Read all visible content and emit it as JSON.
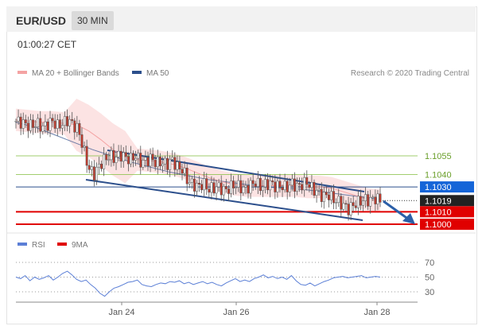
{
  "header": {
    "pair": "EUR/USD",
    "timeframe": "30 MIN"
  },
  "timestamp": "01:00:27 CET",
  "legend": {
    "ma20": {
      "label": "MA 20 + Bollinger Bands",
      "color": "#f4a3a3"
    },
    "ma50": {
      "label": "MA 50",
      "color": "#2c4f8c"
    }
  },
  "credit": "Research © 2020 Trading Central",
  "rsi_legend": {
    "rsi": {
      "label": "RSI",
      "color": "#5b7fd6"
    },
    "ma9": {
      "label": "9MA",
      "color": "#e00000"
    }
  },
  "chart_data": [
    {
      "type": "candlestick",
      "x_ticks": [
        "Jan 24",
        "Jan 26",
        "Jan 28"
      ],
      "ylim": [
        1.0995,
        1.1105
      ],
      "last_price": 1.1019,
      "levels": [
        {
          "label": "1.1055",
          "value": 1.1055,
          "kind": "resistance"
        },
        {
          "label": "1.1040",
          "value": 1.104,
          "kind": "resistance"
        },
        {
          "label": "1.1030",
          "value": 1.103,
          "kind": "pivot"
        },
        {
          "label": "1.1019",
          "value": 1.1019,
          "kind": "last"
        },
        {
          "label": "1.1010",
          "value": 1.101,
          "kind": "support"
        },
        {
          "label": "1.1000",
          "value": 1.1,
          "kind": "support"
        }
      ],
      "close_path": [
        1.1083,
        1.1082,
        1.108,
        1.1079,
        1.1081,
        1.1078,
        1.108,
        1.1083,
        1.1079,
        1.1081,
        1.1084,
        1.108,
        1.1076,
        1.106,
        1.1045,
        1.104,
        1.1047,
        1.1052,
        1.1055,
        1.1053,
        1.1056,
        1.1054,
        1.1052,
        1.1055,
        1.105,
        1.1051,
        1.1053,
        1.1049,
        1.105,
        1.1048,
        1.1052,
        1.1046,
        1.1044,
        1.1035,
        1.1032,
        1.103,
        1.1033,
        1.1028,
        1.1029,
        1.103,
        1.1027,
        1.1029,
        1.1032,
        1.103,
        1.1028,
        1.1031,
        1.1034,
        1.103,
        1.1032,
        1.1033,
        1.103,
        1.1031,
        1.1029,
        1.1033,
        1.103,
        1.1032,
        1.1034,
        1.1028,
        1.1026,
        1.1022,
        1.1024,
        1.102,
        1.1018,
        1.1015,
        1.1012,
        1.1016,
        1.1018,
        1.102,
        1.1019,
        1.1021,
        1.1019
      ],
      "ma20_path": [
        1.1084,
        1.1083,
        1.1082,
        1.1082,
        1.1081,
        1.108,
        1.1075,
        1.1068,
        1.106,
        1.1054,
        1.1052,
        1.1051,
        1.105,
        1.1048,
        1.1045,
        1.1041,
        1.1037,
        1.1034,
        1.1032,
        1.1031,
        1.1031,
        1.1031,
        1.1031,
        1.1031,
        1.103,
        1.103,
        1.1029,
        1.1026,
        1.1023,
        1.102,
        1.1019
      ],
      "ma50_path": [
        1.1082,
        1.1078,
        1.1072,
        1.1066,
        1.106,
        1.1055,
        1.105,
        1.1046,
        1.1042,
        1.1039,
        1.1036,
        1.1034,
        1.1032,
        1.103,
        1.1029,
        1.1028,
        1.1026,
        1.1024,
        1.1022,
        1.102
      ]
    },
    {
      "type": "line",
      "title": "RSI",
      "levels": [
        70,
        50,
        30
      ],
      "ylim": [
        15,
        80
      ],
      "rsi_path": [
        50,
        48,
        52,
        45,
        50,
        47,
        49,
        52,
        46,
        50,
        55,
        58,
        53,
        47,
        44,
        46,
        40,
        35,
        28,
        24,
        30,
        35,
        37,
        40,
        43,
        44,
        46,
        40,
        38,
        37,
        40,
        42,
        41,
        44,
        43,
        45,
        41,
        43,
        40,
        42,
        44,
        41,
        43,
        40,
        38,
        42,
        45,
        48,
        44,
        46,
        44,
        48,
        50,
        53,
        49,
        51,
        48,
        50,
        47,
        52,
        45,
        40,
        39,
        42,
        38,
        41,
        44,
        46,
        49,
        50,
        51,
        49,
        50,
        51,
        52,
        49,
        50,
        51,
        50
      ],
      "ma9_path": []
    }
  ]
}
